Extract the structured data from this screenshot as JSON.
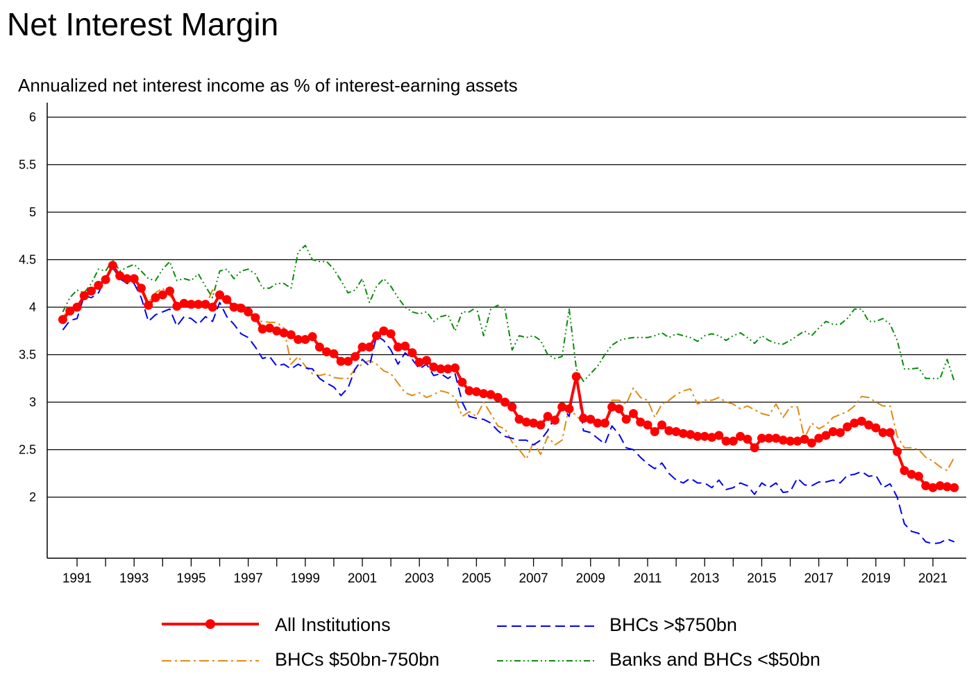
{
  "title": "Net Interest Margin",
  "subtitle": "Annualized net interest income as % of interest-earning assets",
  "colors": {
    "all": "#ff0000",
    "large": "#0000ee",
    "mid": "#e08a10",
    "small": "#0a8a0a",
    "axis": "#000000"
  },
  "chart_data": {
    "type": "line",
    "title": "Net Interest Margin",
    "ylabel": "Annualized net interest income as % of interest-earning assets",
    "ylim": [
      1.5,
      6.2
    ],
    "yticks": [
      "2",
      "2.5",
      "3",
      "3.5",
      "4",
      "4.5",
      "5",
      "5.5",
      "6"
    ],
    "xlim": [
      1990.4,
      2021.75
    ],
    "xticks": [
      "1991",
      "1993",
      "1995",
      "1997",
      "1999",
      "2001",
      "2003",
      "2005",
      "2007",
      "2009",
      "2011",
      "2013",
      "2015",
      "2017",
      "2019",
      "2021"
    ],
    "grid": "horizontal",
    "legend_position": "bottom",
    "series": [
      {
        "name": "All Institutions",
        "style": "solid-markers",
        "x_start": 1990.5,
        "x_step": 0.25,
        "values": [
          3.87,
          3.96,
          4.0,
          4.12,
          4.17,
          4.23,
          4.29,
          4.44,
          4.33,
          4.3,
          4.3,
          4.2,
          4.02,
          4.1,
          4.13,
          4.17,
          4.01,
          4.04,
          4.03,
          4.03,
          4.03,
          4.0,
          4.13,
          4.08,
          4.0,
          3.99,
          3.95,
          3.89,
          3.77,
          3.78,
          3.75,
          3.73,
          3.71,
          3.66,
          3.66,
          3.69,
          3.58,
          3.53,
          3.51,
          3.43,
          3.43,
          3.48,
          3.58,
          3.58,
          3.7,
          3.75,
          3.72,
          3.58,
          3.59,
          3.52,
          3.42,
          3.44,
          3.37,
          3.35,
          3.35,
          3.36,
          3.21,
          3.12,
          3.11,
          3.09,
          3.08,
          3.05,
          3.0,
          2.95,
          2.82,
          2.79,
          2.78,
          2.76,
          2.85,
          2.81,
          2.95,
          2.93,
          3.27,
          2.83,
          2.82,
          2.78,
          2.78,
          2.95,
          2.93,
          2.82,
          2.88,
          2.79,
          2.76,
          2.69,
          2.76,
          2.7,
          2.69,
          2.67,
          2.66,
          2.64,
          2.64,
          2.63,
          2.65,
          2.59,
          2.59,
          2.64,
          2.61,
          2.52,
          2.62,
          2.62,
          2.62,
          2.6,
          2.59,
          2.59,
          2.61,
          2.57,
          2.62,
          2.65,
          2.69,
          2.68,
          2.74,
          2.78,
          2.8,
          2.76,
          2.73,
          2.68,
          2.68,
          2.48,
          2.28,
          2.24,
          2.22,
          2.12,
          2.1,
          2.12,
          2.11,
          2.1
        ]
      },
      {
        "name": "BHCs >$750bn",
        "style": "dashed",
        "x_start": 1990.5,
        "x_step": 0.25,
        "values": [
          3.76,
          3.86,
          3.88,
          4.12,
          4.1,
          4.15,
          4.3,
          4.42,
          4.3,
          4.25,
          4.25,
          4.1,
          3.85,
          3.92,
          3.95,
          3.98,
          3.8,
          3.9,
          3.88,
          3.82,
          3.9,
          3.85,
          4.05,
          3.9,
          3.82,
          3.72,
          3.68,
          3.58,
          3.46,
          3.48,
          3.38,
          3.4,
          3.35,
          3.4,
          3.36,
          3.35,
          3.25,
          3.2,
          3.16,
          3.07,
          3.15,
          3.35,
          3.45,
          3.38,
          3.7,
          3.65,
          3.55,
          3.4,
          3.52,
          3.45,
          3.35,
          3.4,
          3.28,
          3.3,
          3.25,
          3.3,
          3.0,
          2.85,
          2.83,
          2.82,
          2.78,
          2.7,
          2.64,
          2.62,
          2.6,
          2.6,
          2.55,
          2.6,
          2.7,
          2.85,
          2.95,
          2.85,
          3.3,
          2.7,
          2.68,
          2.62,
          2.56,
          2.75,
          2.66,
          2.52,
          2.5,
          2.42,
          2.35,
          2.3,
          2.36,
          2.25,
          2.18,
          2.15,
          2.2,
          2.15,
          2.15,
          2.1,
          2.18,
          2.08,
          2.1,
          2.15,
          2.12,
          2.03,
          2.15,
          2.1,
          2.15,
          2.05,
          2.06,
          2.2,
          2.13,
          2.12,
          2.16,
          2.16,
          2.18,
          2.15,
          2.23,
          2.24,
          2.27,
          2.22,
          2.23,
          2.1,
          2.14,
          2.0,
          1.72,
          1.64,
          1.62,
          1.53,
          1.51,
          1.52,
          1.56,
          1.53
        ]
      },
      {
        "name": "BHCs $50bn-750bn",
        "style": "dashdot",
        "x_start": 1990.5,
        "x_step": 0.25,
        "values": [
          3.9,
          3.98,
          4.02,
          4.1,
          4.18,
          4.23,
          4.3,
          4.4,
          4.35,
          4.28,
          4.3,
          4.22,
          4.05,
          4.15,
          4.2,
          4.12,
          4.05,
          4.02,
          4.0,
          4.05,
          4.0,
          4.18,
          4.1,
          4.05,
          4.03,
          4.03,
          3.95,
          3.85,
          3.85,
          3.84,
          3.84,
          3.78,
          3.4,
          3.48,
          3.38,
          3.3,
          3.28,
          3.3,
          3.26,
          3.25,
          3.25,
          3.35,
          3.4,
          3.44,
          3.4,
          3.33,
          3.3,
          3.2,
          3.1,
          3.07,
          3.1,
          3.05,
          3.08,
          3.12,
          3.1,
          3.05,
          2.85,
          2.9,
          2.85,
          3.0,
          2.88,
          2.75,
          2.72,
          2.58,
          2.5,
          2.4,
          2.58,
          2.45,
          2.64,
          2.55,
          2.6,
          2.95,
          2.85,
          2.8,
          2.82,
          2.75,
          2.76,
          3.02,
          3.02,
          2.98,
          3.15,
          3.05,
          3.02,
          2.84,
          2.98,
          3.02,
          3.08,
          3.12,
          3.14,
          2.98,
          3.02,
          3.02,
          3.05,
          3.0,
          2.98,
          2.93,
          2.96,
          2.92,
          2.88,
          2.86,
          2.98,
          2.84,
          2.95,
          2.95,
          2.62,
          2.78,
          2.72,
          2.76,
          2.84,
          2.87,
          2.9,
          2.96,
          3.06,
          3.05,
          3.0,
          2.96,
          2.96,
          2.64,
          2.52,
          2.52,
          2.5,
          2.42,
          2.38,
          2.32,
          2.28,
          2.42
        ]
      },
      {
        "name": "Banks and BHCs <$50bn",
        "style": "dashdotdot",
        "x_start": 1990.5,
        "x_step": 0.25,
        "values": [
          3.95,
          4.1,
          4.18,
          4.15,
          4.25,
          4.4,
          4.38,
          4.5,
          4.38,
          4.42,
          4.45,
          4.38,
          4.3,
          4.28,
          4.4,
          4.48,
          4.28,
          4.3,
          4.28,
          4.35,
          4.22,
          4.1,
          4.38,
          4.4,
          4.3,
          4.38,
          4.4,
          4.35,
          4.2,
          4.2,
          4.25,
          4.25,
          4.2,
          4.58,
          4.65,
          4.5,
          4.48,
          4.48,
          4.4,
          4.28,
          4.15,
          4.18,
          4.3,
          4.05,
          4.22,
          4.3,
          4.22,
          4.1,
          4.0,
          3.95,
          3.93,
          3.95,
          3.85,
          3.9,
          3.92,
          3.75,
          3.95,
          3.95,
          4.0,
          3.7,
          3.98,
          4.02,
          3.98,
          3.55,
          3.7,
          3.68,
          3.7,
          3.65,
          3.5,
          3.46,
          3.48,
          3.98,
          3.35,
          3.22,
          3.3,
          3.38,
          3.5,
          3.6,
          3.65,
          3.67,
          3.68,
          3.68,
          3.68,
          3.7,
          3.73,
          3.68,
          3.72,
          3.7,
          3.68,
          3.64,
          3.7,
          3.72,
          3.7,
          3.65,
          3.7,
          3.73,
          3.68,
          3.62,
          3.7,
          3.65,
          3.62,
          3.61,
          3.65,
          3.7,
          3.75,
          3.7,
          3.78,
          3.85,
          3.82,
          3.82,
          3.88,
          3.98,
          3.98,
          3.85,
          3.85,
          3.88,
          3.82,
          3.65,
          3.35,
          3.35,
          3.36,
          3.25,
          3.25,
          3.25,
          3.45,
          3.22
        ]
      }
    ]
  },
  "legend": [
    {
      "label": "All Institutions"
    },
    {
      "label": "BHCs >$750bn"
    },
    {
      "label": "BHCs $50bn-750bn"
    },
    {
      "label": "Banks and BHCs <$50bn"
    }
  ]
}
